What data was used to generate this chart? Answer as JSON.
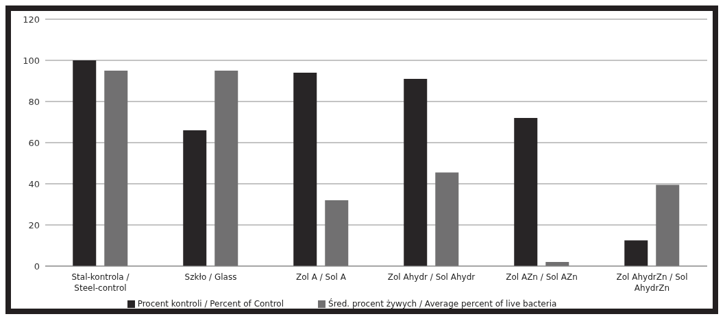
{
  "chart_data": {
    "type": "bar",
    "categories": [
      "Stal-kontrola / Steel-control",
      "Szkło / Glass",
      "Zol A / Sol A",
      "Zol Ahydr / Sol Ahydr",
      "Zol AZn / Sol  AZn",
      "Zol AhydrZn / Sol AhydrZn"
    ],
    "series": [
      {
        "name": "Procent kontroli / Percent of Control",
        "color": "#282526",
        "values": [
          100,
          66,
          94,
          91,
          72,
          12.5
        ]
      },
      {
        "name": "Śred. procent żywych  / Average percent of live bacteria",
        "color": "#717071",
        "values": [
          95,
          95,
          32,
          45.5,
          2,
          39.5
        ]
      }
    ],
    "ylim": [
      0,
      120
    ],
    "yticks": [
      0,
      20,
      40,
      60,
      80,
      100,
      120
    ],
    "grid": "y",
    "legend": "bottom"
  }
}
